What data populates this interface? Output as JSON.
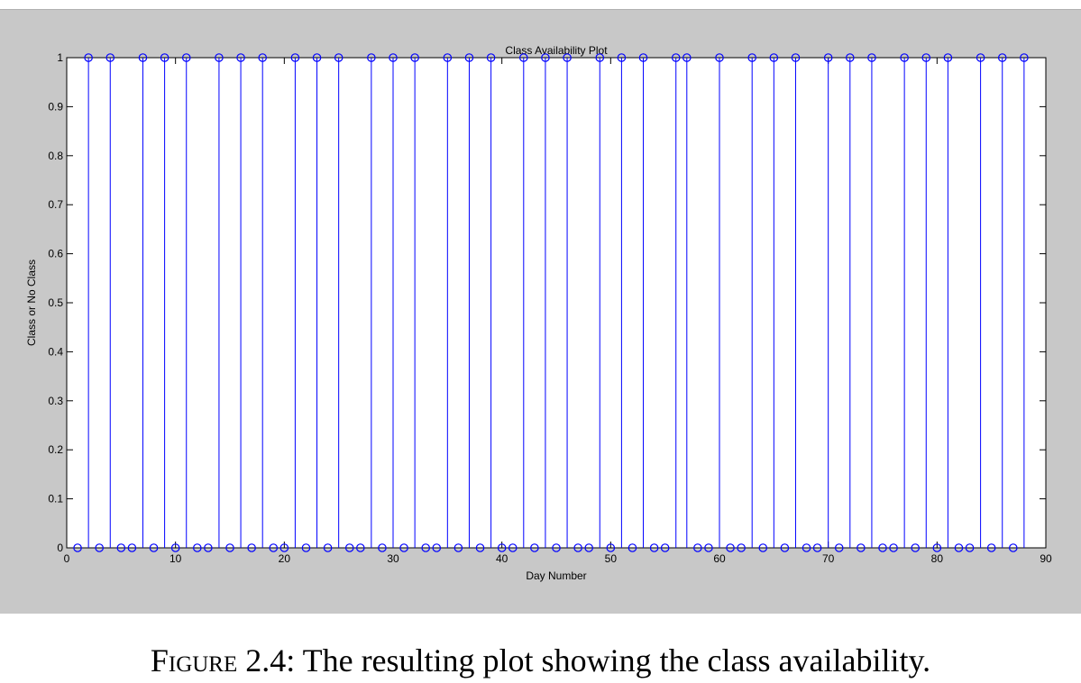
{
  "caption": {
    "label": "Figure 2.4:",
    "text": " The resulting plot showing the class availability."
  },
  "chart_data": {
    "type": "stem",
    "title": "Class Availability Plot",
    "xlabel": "Day Number",
    "ylabel": "Class or No Class",
    "xlim": [
      0,
      90
    ],
    "ylim": [
      0,
      1
    ],
    "xticks": [
      0,
      10,
      20,
      30,
      40,
      50,
      60,
      70,
      80,
      90
    ],
    "yticks": [
      0,
      0.1,
      0.2,
      0.3,
      0.4,
      0.5,
      0.6,
      0.7,
      0.8,
      0.9,
      1
    ],
    "ytick_labels": [
      "0",
      "0.1",
      "0.2",
      "0.3",
      "0.4",
      "0.5",
      "0.6",
      "0.7",
      "0.8",
      "0.9",
      "1"
    ],
    "grid": false,
    "color": "#0000ff",
    "marker": "circle",
    "x": [
      1,
      2,
      3,
      4,
      5,
      6,
      7,
      8,
      9,
      10,
      11,
      12,
      13,
      14,
      15,
      16,
      17,
      18,
      19,
      20,
      21,
      22,
      23,
      24,
      25,
      26,
      27,
      28,
      29,
      30,
      31,
      32,
      33,
      34,
      35,
      36,
      37,
      38,
      39,
      40,
      41,
      42,
      43,
      44,
      45,
      46,
      47,
      48,
      49,
      50,
      51,
      52,
      53,
      54,
      55,
      56,
      57,
      58,
      59,
      60,
      61,
      62,
      63,
      64,
      65,
      66,
      67,
      68,
      69,
      70,
      71,
      72,
      73,
      74,
      75,
      76,
      77,
      78,
      79,
      80,
      81,
      82,
      83,
      84,
      85,
      86,
      87,
      88
    ],
    "y": [
      0,
      1,
      0,
      1,
      0,
      0,
      1,
      0,
      1,
      0,
      1,
      0,
      0,
      1,
      0,
      1,
      0,
      1,
      0,
      0,
      1,
      0,
      1,
      0,
      1,
      0,
      0,
      1,
      0,
      1,
      0,
      1,
      0,
      0,
      1,
      0,
      1,
      0,
      1,
      0,
      0,
      1,
      0,
      1,
      0,
      1,
      0,
      0,
      1,
      0,
      1,
      0,
      1,
      0,
      0,
      1,
      1,
      0,
      0,
      1,
      0,
      0,
      1,
      0,
      1,
      0,
      1,
      0,
      0,
      1,
      0,
      1,
      0,
      1,
      0,
      0,
      1,
      0,
      1,
      0,
      1,
      0,
      0,
      1,
      0,
      1,
      0,
      1
    ]
  }
}
